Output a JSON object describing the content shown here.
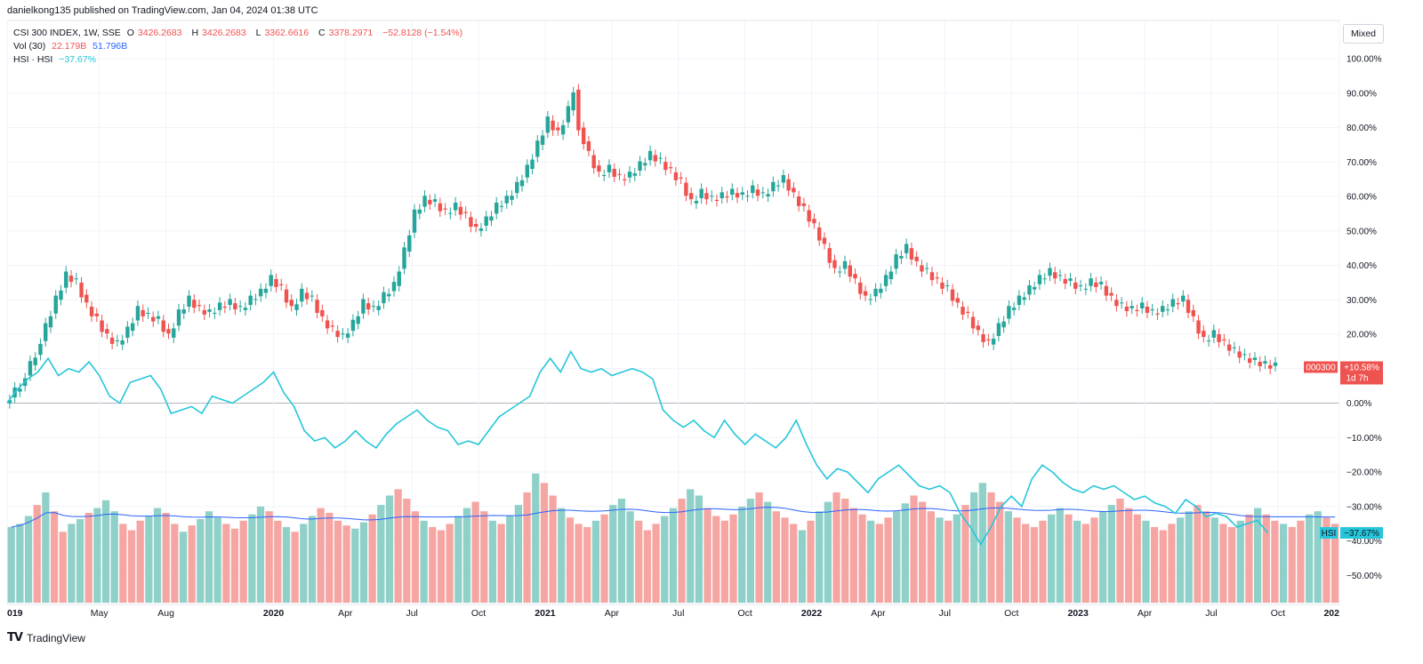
{
  "header": {
    "published": "danielkong135 published on TradingView.com, Jan 04, 2024 01:38 UTC"
  },
  "legend": {
    "main": {
      "name": "CSI 300 INDEX, 1W, SSE",
      "o_label": "O",
      "o": "3426.2683",
      "h_label": "H",
      "h": "3426.2683",
      "l_label": "L",
      "l": "3362.6616",
      "c_label": "C",
      "c": "3378.2971",
      "chg": "−52.8128 (−1.54%)"
    },
    "vol": {
      "name": "Vol (30)",
      "v1": "22.179B",
      "v2": "51.796B"
    },
    "cmp": {
      "name": "HSI · HSI",
      "val": "−37.67%"
    }
  },
  "mixed_label": "Mixed",
  "footer": {
    "logo": "TV",
    "brand": "TradingView"
  },
  "colors": {
    "up": "#26a69a",
    "down": "#ef5350",
    "cyan": "#26c6da",
    "ma": "#2962ff",
    "vol_up": "#8fd0c8",
    "vol_down": "#f5a6a3"
  },
  "chart_data": {
    "type": "line",
    "title": "CSI 300 INDEX, 1W, SSE",
    "y_axis": {
      "unit": "%",
      "range": [
        -55,
        105
      ],
      "ticks": [
        "100.00%",
        "90.00%",
        "80.00%",
        "70.00%",
        "60.00%",
        "50.00%",
        "40.00%",
        "30.00%",
        "20.00%",
        "10.00%",
        "0.00%",
        "−10.00%",
        "−20.00%",
        "−30.00%",
        "−40.00%",
        "−50.00%"
      ],
      "tick_values": [
        100,
        90,
        80,
        70,
        60,
        50,
        40,
        30,
        20,
        10,
        0,
        -10,
        -20,
        -30,
        -40,
        -50
      ]
    },
    "x_axis": {
      "range_weeks": [
        0,
        260
      ],
      "labels": [
        {
          "text": "019",
          "week": 0,
          "bold": true
        },
        {
          "text": "May",
          "week": 18,
          "bold": false
        },
        {
          "text": "Aug",
          "week": 31,
          "bold": false
        },
        {
          "text": "2020",
          "week": 52,
          "bold": true
        },
        {
          "text": "Apr",
          "week": 66,
          "bold": false
        },
        {
          "text": "Jul",
          "week": 79,
          "bold": false
        },
        {
          "text": "Oct",
          "week": 92,
          "bold": false
        },
        {
          "text": "2021",
          "week": 105,
          "bold": true
        },
        {
          "text": "Apr",
          "week": 118,
          "bold": false
        },
        {
          "text": "Jul",
          "week": 131,
          "bold": false
        },
        {
          "text": "Oct",
          "week": 144,
          "bold": false
        },
        {
          "text": "2022",
          "week": 157,
          "bold": true
        },
        {
          "text": "Apr",
          "week": 170,
          "bold": false
        },
        {
          "text": "Jul",
          "week": 183,
          "bold": false
        },
        {
          "text": "Oct",
          "week": 196,
          "bold": false
        },
        {
          "text": "2023",
          "week": 209,
          "bold": true
        },
        {
          "text": "Apr",
          "week": 222,
          "bold": false
        },
        {
          "text": "Jul",
          "week": 235,
          "bold": false
        },
        {
          "text": "Oct",
          "week": 248,
          "bold": false
        },
        {
          "text": "202",
          "week": 260,
          "bold": true
        }
      ]
    },
    "series": [
      {
        "name": "000300",
        "kind": "candlestick",
        "unit": "% change",
        "points": [
          [
            0,
            0
          ],
          [
            3,
            5
          ],
          [
            6,
            14
          ],
          [
            8,
            22
          ],
          [
            10,
            30
          ],
          [
            12,
            37
          ],
          [
            14,
            35
          ],
          [
            16,
            28
          ],
          [
            18,
            24
          ],
          [
            20,
            19
          ],
          [
            22,
            17
          ],
          [
            24,
            21
          ],
          [
            26,
            27
          ],
          [
            28,
            25
          ],
          [
            30,
            24
          ],
          [
            32,
            19
          ],
          [
            34,
            26
          ],
          [
            36,
            30
          ],
          [
            38,
            27
          ],
          [
            40,
            26
          ],
          [
            42,
            28
          ],
          [
            44,
            29
          ],
          [
            46,
            27
          ],
          [
            48,
            30
          ],
          [
            50,
            32
          ],
          [
            52,
            36
          ],
          [
            54,
            33
          ],
          [
            56,
            27
          ],
          [
            58,
            32
          ],
          [
            60,
            30
          ],
          [
            62,
            24
          ],
          [
            64,
            21
          ],
          [
            66,
            19
          ],
          [
            68,
            23
          ],
          [
            70,
            29
          ],
          [
            72,
            27
          ],
          [
            74,
            31
          ],
          [
            76,
            34
          ],
          [
            78,
            44
          ],
          [
            80,
            55
          ],
          [
            82,
            59
          ],
          [
            84,
            58
          ],
          [
            86,
            55
          ],
          [
            88,
            57
          ],
          [
            90,
            54
          ],
          [
            92,
            50
          ],
          [
            94,
            53
          ],
          [
            96,
            57
          ],
          [
            98,
            59
          ],
          [
            100,
            63
          ],
          [
            102,
            68
          ],
          [
            104,
            75
          ],
          [
            106,
            82
          ],
          [
            108,
            78
          ],
          [
            110,
            85
          ],
          [
            111,
            91
          ],
          [
            112,
            80
          ],
          [
            114,
            72
          ],
          [
            116,
            66
          ],
          [
            118,
            68
          ],
          [
            120,
            65
          ],
          [
            122,
            66
          ],
          [
            124,
            69
          ],
          [
            126,
            72
          ],
          [
            128,
            70
          ],
          [
            130,
            67
          ],
          [
            132,
            64
          ],
          [
            134,
            58
          ],
          [
            136,
            61
          ],
          [
            138,
            59
          ],
          [
            140,
            60
          ],
          [
            142,
            61
          ],
          [
            144,
            60
          ],
          [
            146,
            62
          ],
          [
            148,
            60
          ],
          [
            150,
            63
          ],
          [
            152,
            65
          ],
          [
            154,
            60
          ],
          [
            156,
            56
          ],
          [
            158,
            51
          ],
          [
            160,
            45
          ],
          [
            162,
            38
          ],
          [
            164,
            40
          ],
          [
            166,
            35
          ],
          [
            168,
            30
          ],
          [
            170,
            32
          ],
          [
            172,
            36
          ],
          [
            174,
            42
          ],
          [
            176,
            45
          ],
          [
            178,
            40
          ],
          [
            180,
            38
          ],
          [
            182,
            35
          ],
          [
            184,
            33
          ],
          [
            186,
            28
          ],
          [
            188,
            25
          ],
          [
            190,
            20
          ],
          [
            192,
            17
          ],
          [
            194,
            22
          ],
          [
            196,
            27
          ],
          [
            198,
            30
          ],
          [
            200,
            33
          ],
          [
            202,
            36
          ],
          [
            204,
            38
          ],
          [
            206,
            36
          ],
          [
            208,
            35
          ],
          [
            210,
            33
          ],
          [
            212,
            35
          ],
          [
            214,
            34
          ],
          [
            216,
            30
          ],
          [
            218,
            28
          ],
          [
            220,
            27
          ],
          [
            222,
            28
          ],
          [
            224,
            26
          ],
          [
            226,
            27
          ],
          [
            228,
            29
          ],
          [
            230,
            30
          ],
          [
            232,
            24
          ],
          [
            234,
            18
          ],
          [
            236,
            20
          ],
          [
            238,
            17
          ],
          [
            240,
            15
          ],
          [
            242,
            13
          ],
          [
            244,
            12
          ],
          [
            246,
            11
          ],
          [
            248,
            10.58
          ]
        ]
      },
      {
        "name": "HSI",
        "kind": "line",
        "unit": "% change",
        "points": [
          [
            0,
            0
          ],
          [
            2,
            4
          ],
          [
            4,
            7
          ],
          [
            6,
            9
          ],
          [
            8,
            13
          ],
          [
            10,
            8
          ],
          [
            12,
            10
          ],
          [
            14,
            9
          ],
          [
            16,
            12
          ],
          [
            18,
            8
          ],
          [
            20,
            2
          ],
          [
            22,
            0
          ],
          [
            24,
            6
          ],
          [
            26,
            7
          ],
          [
            28,
            8
          ],
          [
            30,
            4
          ],
          [
            32,
            -3
          ],
          [
            34,
            -2
          ],
          [
            36,
            -1
          ],
          [
            38,
            -3
          ],
          [
            40,
            2
          ],
          [
            42,
            1
          ],
          [
            44,
            0
          ],
          [
            46,
            2
          ],
          [
            48,
            4
          ],
          [
            50,
            6
          ],
          [
            52,
            9
          ],
          [
            54,
            3
          ],
          [
            56,
            -1
          ],
          [
            58,
            -8
          ],
          [
            60,
            -11
          ],
          [
            62,
            -10
          ],
          [
            64,
            -13
          ],
          [
            66,
            -11
          ],
          [
            68,
            -8
          ],
          [
            70,
            -11
          ],
          [
            72,
            -13
          ],
          [
            74,
            -9
          ],
          [
            76,
            -6
          ],
          [
            78,
            -4
          ],
          [
            80,
            -2
          ],
          [
            82,
            -5
          ],
          [
            84,
            -7
          ],
          [
            86,
            -8
          ],
          [
            88,
            -12
          ],
          [
            90,
            -11
          ],
          [
            92,
            -12
          ],
          [
            94,
            -8
          ],
          [
            96,
            -4
          ],
          [
            98,
            -2
          ],
          [
            100,
            0
          ],
          [
            102,
            2
          ],
          [
            104,
            9
          ],
          [
            106,
            13
          ],
          [
            108,
            9
          ],
          [
            110,
            15
          ],
          [
            112,
            10
          ],
          [
            114,
            9
          ],
          [
            116,
            10
          ],
          [
            118,
            8
          ],
          [
            120,
            9
          ],
          [
            122,
            10
          ],
          [
            124,
            9
          ],
          [
            126,
            7
          ],
          [
            128,
            -2
          ],
          [
            130,
            -5
          ],
          [
            132,
            -7
          ],
          [
            134,
            -5
          ],
          [
            136,
            -8
          ],
          [
            138,
            -10
          ],
          [
            140,
            -5
          ],
          [
            142,
            -9
          ],
          [
            144,
            -12
          ],
          [
            146,
            -9
          ],
          [
            148,
            -11
          ],
          [
            150,
            -13
          ],
          [
            152,
            -10
          ],
          [
            154,
            -5
          ],
          [
            156,
            -12
          ],
          [
            158,
            -18
          ],
          [
            160,
            -22
          ],
          [
            162,
            -19
          ],
          [
            164,
            -20
          ],
          [
            166,
            -23
          ],
          [
            168,
            -26
          ],
          [
            170,
            -22
          ],
          [
            172,
            -20
          ],
          [
            174,
            -18
          ],
          [
            176,
            -21
          ],
          [
            178,
            -24
          ],
          [
            180,
            -25
          ],
          [
            182,
            -24
          ],
          [
            184,
            -26
          ],
          [
            186,
            -32
          ],
          [
            188,
            -36
          ],
          [
            190,
            -41
          ],
          [
            192,
            -36
          ],
          [
            194,
            -30
          ],
          [
            196,
            -27
          ],
          [
            198,
            -30
          ],
          [
            200,
            -22
          ],
          [
            202,
            -18
          ],
          [
            204,
            -20
          ],
          [
            206,
            -23
          ],
          [
            208,
            -25
          ],
          [
            210,
            -26
          ],
          [
            212,
            -24
          ],
          [
            214,
            -25
          ],
          [
            216,
            -24
          ],
          [
            218,
            -26
          ],
          [
            220,
            -28
          ],
          [
            222,
            -27
          ],
          [
            224,
            -29
          ],
          [
            226,
            -30
          ],
          [
            228,
            -32
          ],
          [
            230,
            -28
          ],
          [
            232,
            -30
          ],
          [
            234,
            -33
          ],
          [
            236,
            -32
          ],
          [
            238,
            -33
          ],
          [
            240,
            -36
          ],
          [
            242,
            -35
          ],
          [
            244,
            -34
          ],
          [
            246,
            -37.67
          ]
        ]
      }
    ],
    "volume": {
      "name": "Vol (30)",
      "values": [
        48,
        50,
        55,
        62,
        70,
        58,
        45,
        50,
        53,
        57,
        60,
        65,
        58,
        50,
        46,
        52,
        55,
        60,
        57,
        50,
        45,
        49,
        53,
        58,
        54,
        50,
        47,
        52,
        56,
        61,
        58,
        52,
        48,
        45,
        50,
        55,
        60,
        57,
        52,
        49,
        47,
        51,
        56,
        62,
        68,
        72,
        66,
        58,
        52,
        48,
        46,
        50,
        55,
        60,
        64,
        58,
        52,
        50,
        55,
        62,
        70,
        82,
        76,
        68,
        60,
        54,
        50,
        48,
        52,
        56,
        62,
        66,
        58,
        52,
        46,
        50,
        55,
        60,
        66,
        72,
        68,
        60,
        55,
        52,
        56,
        61,
        66,
        70,
        64,
        58,
        54,
        50,
        46,
        52,
        58,
        64,
        70,
        66,
        60,
        56,
        52,
        50,
        54,
        58,
        63,
        68,
        64,
        58,
        54,
        52,
        56,
        62,
        70,
        76,
        70,
        64,
        58,
        54,
        50,
        48,
        52,
        56,
        60,
        56,
        52,
        50,
        54,
        58,
        62,
        66,
        60,
        56,
        52,
        48,
        46,
        50,
        54,
        58,
        62,
        58,
        54,
        50,
        48,
        52,
        56,
        60,
        56,
        52,
        50,
        48,
        52,
        56,
        58,
        54,
        50
      ]
    },
    "badges": {
      "main_name": "000300",
      "main_change": "+10.58%",
      "main_time": "1d 7h",
      "cmp_name": "HSI",
      "cmp_change": "−37.67%"
    }
  }
}
